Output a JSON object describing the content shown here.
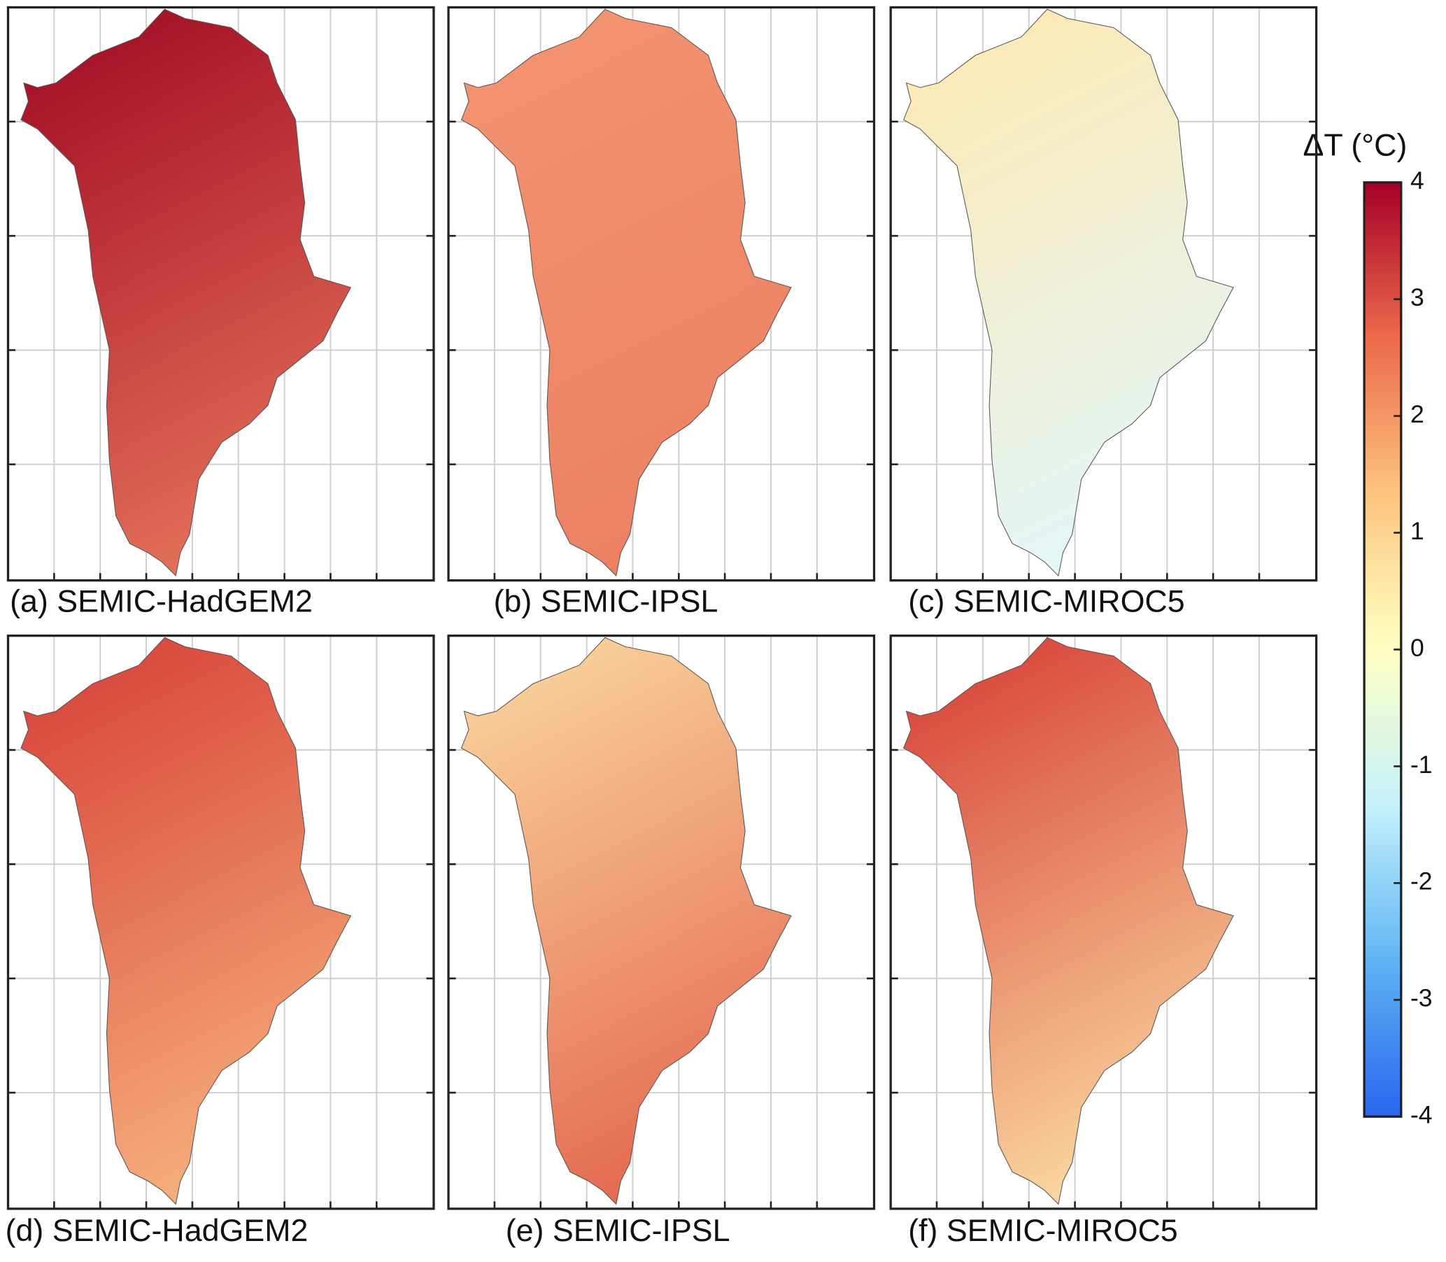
{
  "chart_data": {
    "type": "map-panels",
    "panels": [
      {
        "title": "(a) SEMIC-HadGEM2",
        "colors": [
          "#a50f26",
          "#e5735a"
        ]
      },
      {
        "title": "(b) SEMIC-IPSL",
        "colors": [
          "#f29370",
          "#ec8062"
        ]
      },
      {
        "title": "(c) SEMIC-MIROC5",
        "colors": [
          "#fce9b4",
          "#e2f6fb"
        ]
      },
      {
        "title": "(d) SEMIC-HadGEM2",
        "colors": [
          "#d8453b",
          "#f7b27e"
        ]
      },
      {
        "title": "(e) SEMIC-IPSL",
        "colors": [
          "#f9d29b",
          "#e4654f"
        ]
      },
      {
        "title": "(f) SEMIC-MIROC5",
        "colors": [
          "#d8463b",
          "#fbdca4"
        ]
      }
    ],
    "colorbar": {
      "label": "ΔT (°C)",
      "ylim": [
        -4,
        4
      ],
      "yticks": [
        -4,
        -3,
        -2,
        -1,
        0,
        1,
        2,
        3,
        4
      ],
      "colors": [
        "#2a66f0",
        "#5fb4f5",
        "#c4f0fb",
        "#ffffc4",
        "#fbc57e",
        "#ec6a4c",
        "#a50026"
      ]
    }
  }
}
